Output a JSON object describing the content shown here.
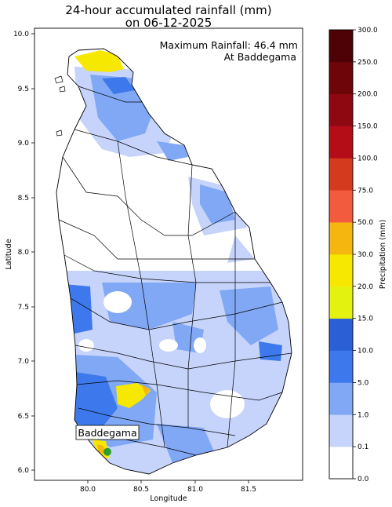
{
  "title_line1": "24-hour accumulated rainfall (mm)",
  "title_line2": "on 06-12-2025",
  "annotation_line1": "Maximum Rainfall: 46.4 mm",
  "annotation_line2": "At Baddegama",
  "station_label": "Baddegama",
  "station_lon": 80.18,
  "station_lat": 6.18,
  "xlabel": "Longitude",
  "ylabel": "Latitude",
  "x_ticks": [
    "80.0",
    "80.5",
    "81.0",
    "81.5"
  ],
  "y_ticks": [
    "6.0",
    "6.5",
    "7.0",
    "7.5",
    "8.0",
    "8.5",
    "9.0",
    "9.5",
    "10.0"
  ],
  "xlim": [
    79.5,
    82.0
  ],
  "ylim": [
    5.92,
    10.05
  ],
  "colorbar": {
    "label": "Precipitation (mm)",
    "ticks": [
      "0.0",
      "0.1",
      "1.0",
      "5.0",
      "10.0",
      "15.0",
      "20.0",
      "30.0",
      "50.0",
      "75.0",
      "100.0",
      "150.0",
      "200.0",
      "250.0",
      "300.0"
    ],
    "colors": [
      "#ffffff",
      "#c6d3fb",
      "#80a8f5",
      "#3d79ec",
      "#2b5fd6",
      "#e3f30f",
      "#f7e800",
      "#f5b60f",
      "#f35b3f",
      "#d43a1e",
      "#b40d17",
      "#8e0812",
      "#6d0509",
      "#4e0206"
    ]
  },
  "colors": {
    "land": "#ffffff",
    "light": "#c6d3fb",
    "mid": "#80a8f5",
    "dark": "#3d79ec",
    "yellow": "#f7e800",
    "orange": "#f5b60f",
    "station": "#2c9e2c"
  }
}
